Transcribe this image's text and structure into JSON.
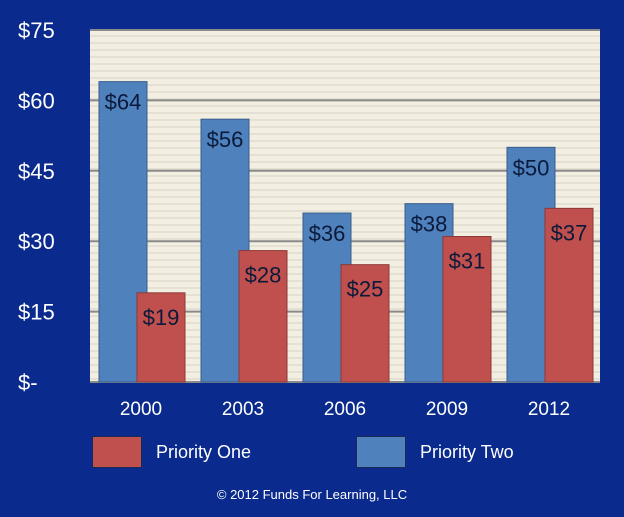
{
  "chart_data": {
    "type": "bar",
    "categories": [
      "2000",
      "2003",
      "2006",
      "2009",
      "2012"
    ],
    "series": [
      {
        "name": "Priority One",
        "values": [
          19,
          28,
          25,
          31,
          37
        ],
        "labels": [
          "$19",
          "$28",
          "$25",
          "$31",
          "$37"
        ],
        "color": "#c0504d"
      },
      {
        "name": "Priority Two",
        "values": [
          64,
          56,
          36,
          38,
          50
        ],
        "labels": [
          "$64",
          "$56",
          "$36",
          "$38",
          "$50"
        ],
        "color": "#4f81bd"
      }
    ],
    "ylim": [
      0,
      75
    ],
    "yticks": [
      0,
      15,
      30,
      45,
      60,
      75
    ],
    "ytick_labels": [
      "$-",
      "$15",
      "$30",
      "$45",
      "$60",
      "$75"
    ],
    "grid": true,
    "legend_position": "bottom",
    "plot_background": "#f2efe2",
    "background": "#0a2a8e"
  },
  "legend": {
    "priority_one": "Priority One",
    "priority_two": "Priority Two"
  },
  "footer": {
    "copyright": "© 2012 Funds For Learning, LLC"
  }
}
